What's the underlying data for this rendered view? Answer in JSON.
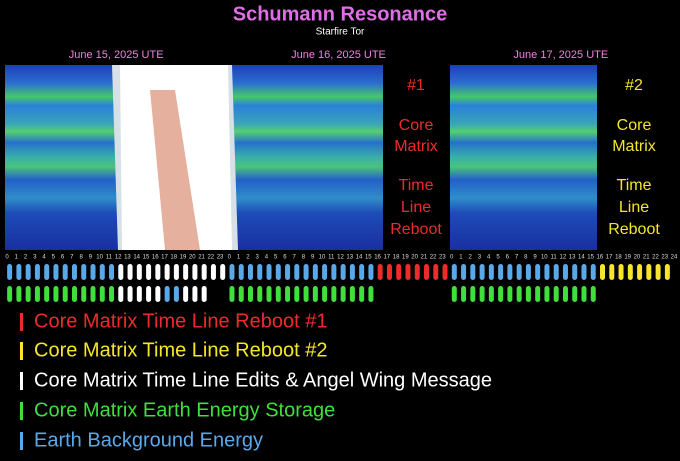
{
  "header": {
    "title": "Schumann Resonance",
    "subtitle": "Starfire Tor"
  },
  "days": [
    "June 15, 2025 UTE",
    "June 16, 2025 UTE",
    "June 17, 2025 UTE"
  ],
  "hour_axis": [
    [
      0,
      1,
      2,
      3,
      4,
      5,
      6,
      7,
      8,
      9,
      10,
      11,
      12,
      13,
      14,
      15,
      16,
      17,
      18,
      19,
      20,
      21,
      22,
      23
    ],
    [
      0,
      1,
      2,
      3,
      4,
      5,
      6,
      7,
      8,
      9,
      10,
      11,
      12,
      13,
      14,
      15,
      16,
      17,
      18,
      19,
      20,
      21,
      22,
      23
    ],
    [
      0,
      1,
      2,
      3,
      4,
      5,
      6,
      7,
      8,
      9,
      10,
      11,
      12,
      13,
      14,
      15,
      16,
      17,
      18,
      19,
      20,
      21,
      22,
      23,
      24
    ]
  ],
  "annotations": [
    {
      "number": "#1",
      "lines": [
        "Core",
        "Matrix",
        "Time",
        "Line",
        "Reboot"
      ],
      "color": "#ee2b2b"
    },
    {
      "number": "#2",
      "lines": [
        "Core",
        "Matrix",
        "Time",
        "Line",
        "Reboot"
      ],
      "color": "#f5e62a"
    }
  ],
  "legend": [
    {
      "text": "Core Matrix Time Line Reboot #1",
      "color": "#ee2b2b"
    },
    {
      "text": "Core Matrix Time Line Reboot #2",
      "color": "#f5e62a"
    },
    {
      "text": "Core Matrix Time Line Edits & Angel Wing Message",
      "color": "#ffffff"
    },
    {
      "text": "Core Matrix Earth Energy Storage",
      "color": "#3fe03b"
    },
    {
      "text": "Earth Background Energy",
      "color": "#5aa8e8"
    }
  ]
}
